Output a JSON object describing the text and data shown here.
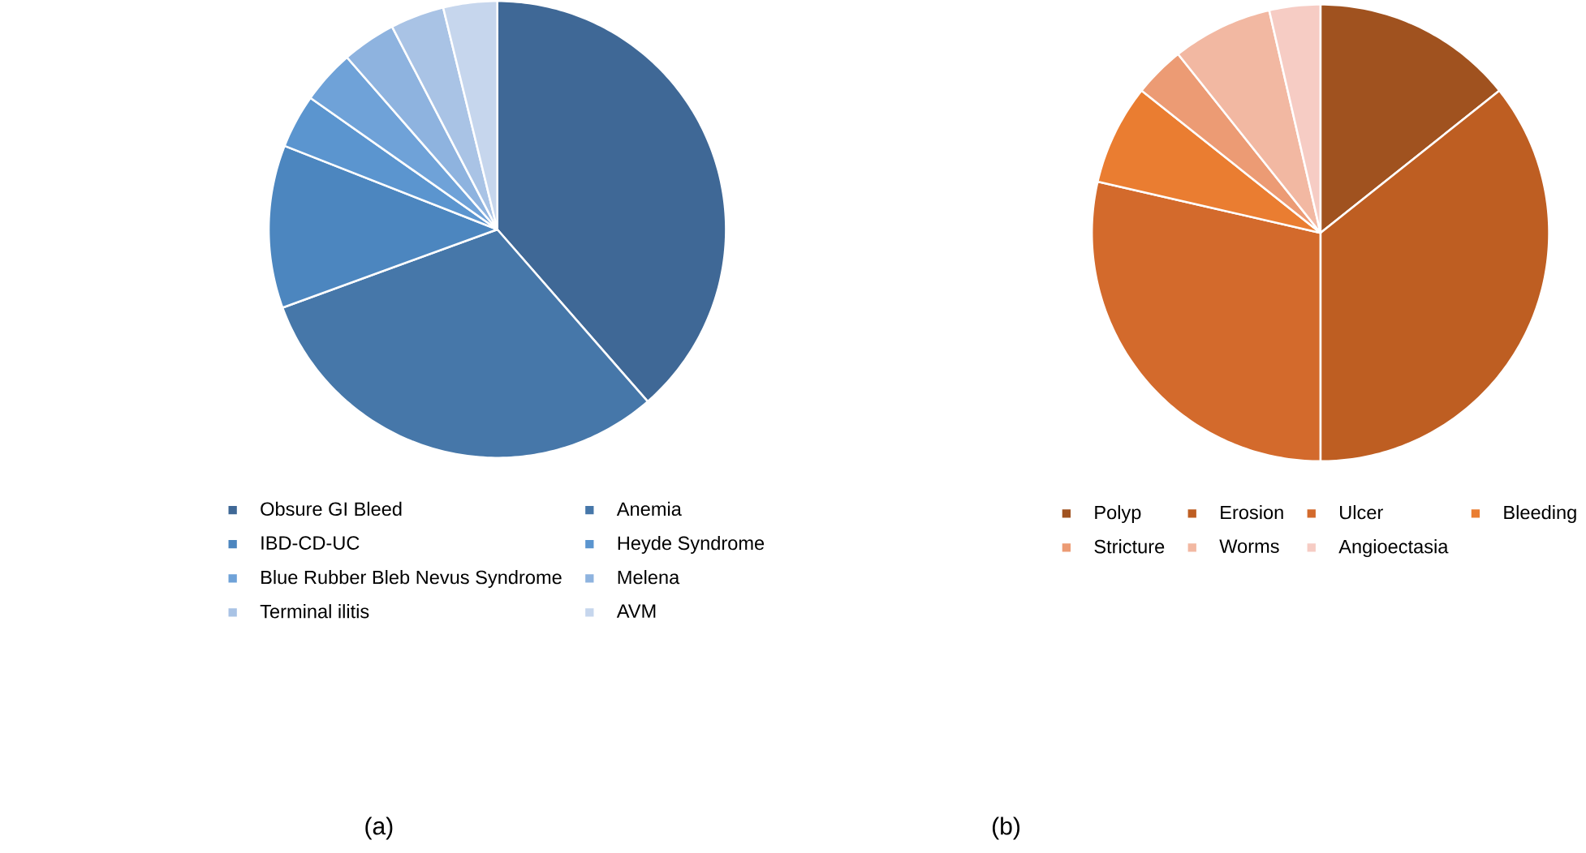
{
  "chart_data": [
    {
      "type": "pie",
      "categories": [
        "Obsure GI Bleed",
        "Anemia",
        "IBD-CD-UC",
        "Heyde Syndrome",
        "Blue Rubber Bleb Nevus Syndrome",
        "Melena",
        "Terminal ilitis",
        "AVM"
      ],
      "values": [
        38.5,
        30.8,
        11.5,
        3.8,
        3.8,
        3.8,
        3.8,
        3.8
      ],
      "colors": [
        "#3f6896",
        "#4677a9",
        "#4c86bf",
        "#5b95cf",
        "#6fa2d8",
        "#8eb3df",
        "#a9c3e5",
        "#c6d6ed"
      ],
      "legend": "bottom",
      "annotations": [
        "(a)"
      ]
    },
    {
      "type": "pie",
      "categories": [
        "Polyp",
        "Erosion",
        "Ulcer",
        "Bleeding",
        "Stricture",
        "Worms",
        "Angioectasia"
      ],
      "values": [
        14.3,
        35.7,
        28.6,
        7.1,
        3.6,
        7.1,
        3.6
      ],
      "colors": [
        "#a0521f",
        "#be5e22",
        "#d36a2c",
        "#ea7d31",
        "#ec9b74",
        "#f2b8a2",
        "#f6ccc4"
      ],
      "legend": "bottom",
      "annotations": [
        "(b)"
      ]
    }
  ]
}
